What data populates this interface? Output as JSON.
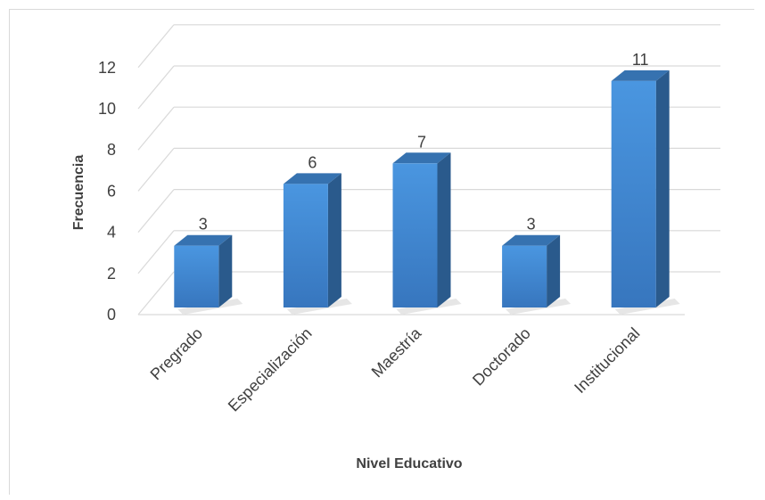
{
  "chart_data": {
    "type": "bar",
    "title": "",
    "xlabel": "Nivel Educativo",
    "ylabel": "Frecuencia",
    "categories": [
      "Pregrado",
      "Especialización",
      "Maestría",
      "Doctorado",
      "Institucional"
    ],
    "values": [
      3,
      6,
      7,
      3,
      11
    ],
    "yticks": [
      "0",
      "2",
      "4",
      "6",
      "8",
      "10",
      "12"
    ],
    "ylim": [
      0,
      12
    ],
    "grid": true,
    "legend": "none",
    "style": "3d-bar",
    "colors": {
      "bar_front": "#4a90d9",
      "bar_side": "#2a5a8c",
      "bar_top": "#3672b0",
      "grid": "#d9d9d9",
      "text": "#404040"
    }
  }
}
